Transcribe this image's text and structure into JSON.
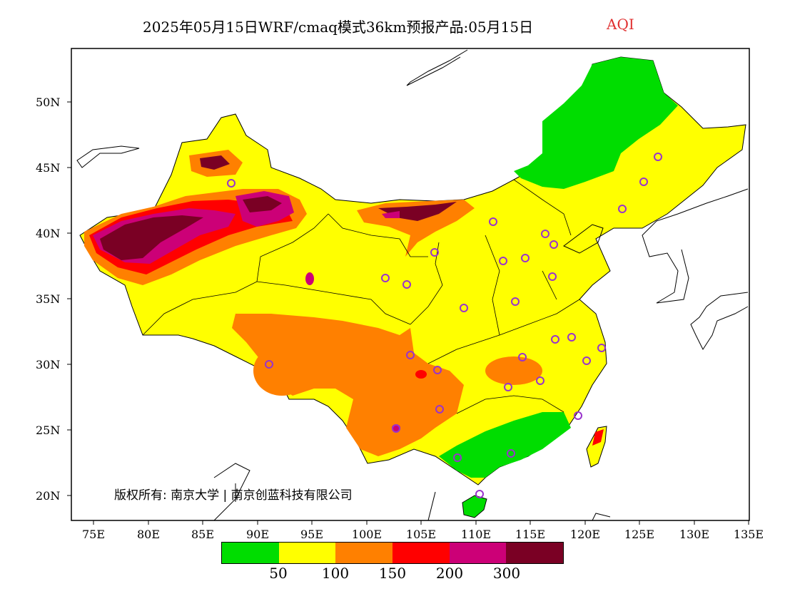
{
  "title": {
    "main": "2025年05月15日WRF/cmaq模式36km预报产品:05月15日",
    "variable": "AQI"
  },
  "colors": {
    "green": "#00dd00",
    "yellow": "#ffff00",
    "orange": "#ff8000",
    "red": "#ff0000",
    "purple": "#cc0077",
    "maroon": "#7a0024",
    "station": "#9933cc",
    "title_accent": "#e03030"
  },
  "axes": {
    "lat_labels": [
      "50N",
      "45N",
      "40N",
      "35N",
      "30N",
      "25N",
      "20N"
    ],
    "lon_labels": [
      "75E",
      "80E",
      "85E",
      "90E",
      "95E",
      "100E",
      "105E",
      "110E",
      "115E",
      "120E",
      "125E",
      "130E",
      "135E"
    ]
  },
  "copyright": "版权所有: 南京大学 | 南京创蓝科技有限公司",
  "legend": {
    "colors": [
      "#00dd00",
      "#ffff00",
      "#ff8000",
      "#ff0000",
      "#cc0077",
      "#7a0024"
    ],
    "ticks": [
      "50",
      "100",
      "150",
      "200",
      "300"
    ]
  }
}
